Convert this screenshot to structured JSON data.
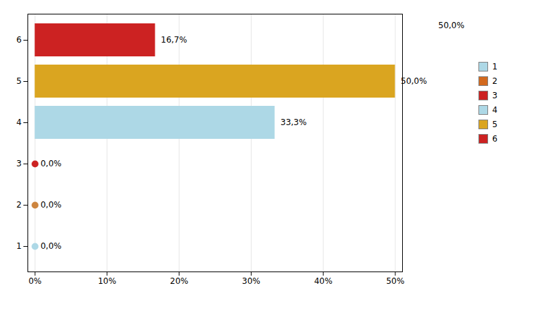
{
  "chart_data": {
    "type": "bar",
    "orientation": "horizontal",
    "categories": [
      "1",
      "2",
      "3",
      "4",
      "5",
      "6"
    ],
    "values": [
      0.0,
      0.0,
      0.0,
      33.3,
      50.0,
      16.7
    ],
    "value_labels": [
      "0,0%",
      "0,0%",
      "0,0%",
      "33,3%",
      "50,0%",
      "16,7%"
    ],
    "data_labels": true,
    "colors": [
      "#ADD8E6",
      "#CD853F",
      "#CC2222",
      "#ADD8E6",
      "#DAA520",
      "#CC2222"
    ],
    "xlim": [
      -1,
      51
    ],
    "xticks": [
      {
        "value": 0,
        "label": "0%"
      },
      {
        "value": 10,
        "label": "10%"
      },
      {
        "value": 20,
        "label": "20%"
      },
      {
        "value": 30,
        "label": "30%"
      },
      {
        "value": 40,
        "label": "40%"
      },
      {
        "value": 50,
        "label": "50%"
      }
    ],
    "grid": true,
    "legend": "right",
    "legend_labels": [
      "1",
      "2",
      "3",
      "4",
      "5",
      "6"
    ],
    "legend_colors": [
      "#ADD8E6",
      "#D2691E",
      "#CC2222",
      "#ADD8E6",
      "#DAA520",
      "#CC2222"
    ],
    "annotations": [
      "50,0%"
    ]
  }
}
